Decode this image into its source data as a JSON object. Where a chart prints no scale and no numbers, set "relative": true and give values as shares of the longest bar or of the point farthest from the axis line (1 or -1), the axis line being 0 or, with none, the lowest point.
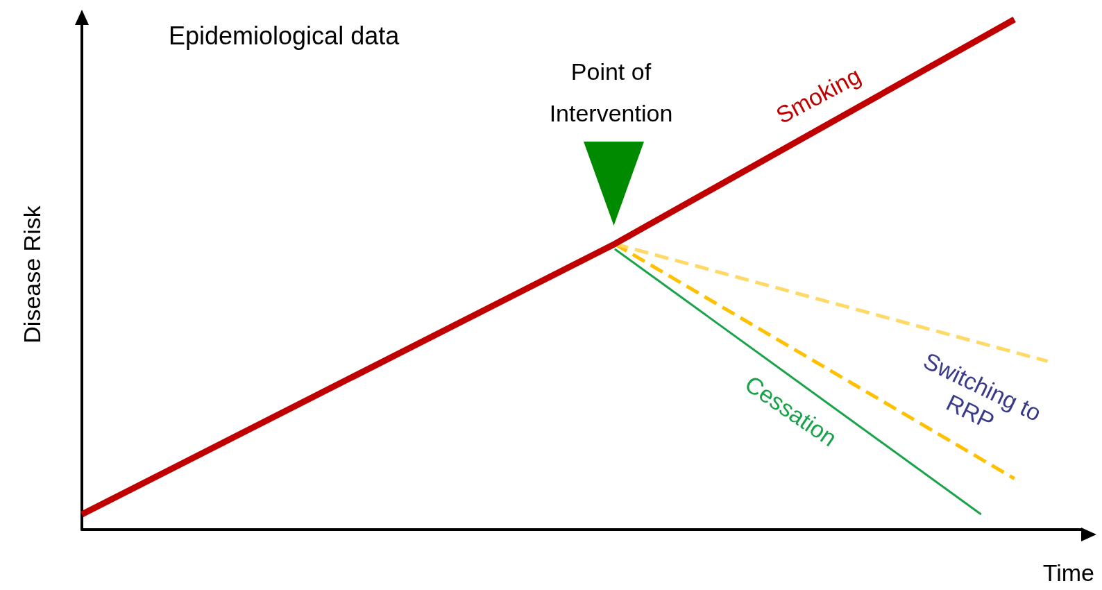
{
  "chart_data": {
    "type": "line",
    "title": "Epidemiological data",
    "xlabel": "Time",
    "ylabel": "Disease Risk",
    "relative": true,
    "legend": false,
    "grid": false,
    "marker": "none",
    "categories": [
      null,
      null,
      null,
      null,
      null,
      null,
      null,
      null,
      null,
      null,
      null,
      null,
      null,
      null,
      null,
      null,
      null,
      null,
      null,
      null,
      null,
      null,
      null,
      null,
      null,
      null,
      null,
      null,
      null,
      null,
      null
    ],
    "annotations": [
      "Point of Intervention"
    ],
    "series": [
      {
        "name": "Smoking",
        "color": "#c00000",
        "line_style": "solid",
        "values": [
          0.03,
          null,
          null,
          null,
          null,
          null,
          null,
          null,
          null,
          null,
          null,
          null,
          null,
          null,
          null,
          null,
          0.56,
          null,
          null,
          null,
          null,
          null,
          null,
          null,
          null,
          null,
          null,
          null,
          1.0,
          null,
          null
        ]
      },
      {
        "color": "#ffd966",
        "line_style": "dashed",
        "values": [
          null,
          null,
          null,
          null,
          null,
          null,
          null,
          null,
          null,
          null,
          null,
          null,
          null,
          null,
          null,
          null,
          0.56,
          null,
          null,
          null,
          null,
          null,
          null,
          null,
          null,
          null,
          null,
          null,
          null,
          0.33,
          null
        ]
      },
      {
        "name": "Switching to RRP",
        "color": "#ffc000",
        "line_style": "dashed",
        "values": [
          null,
          null,
          null,
          null,
          null,
          null,
          null,
          null,
          null,
          null,
          null,
          null,
          null,
          null,
          null,
          null,
          0.56,
          null,
          null,
          null,
          null,
          null,
          null,
          null,
          null,
          null,
          null,
          null,
          0.1,
          null,
          null
        ]
      },
      {
        "name": "Cessation",
        "color": "#1aa34a",
        "line_style": "solid",
        "values": [
          null,
          null,
          null,
          null,
          null,
          null,
          null,
          null,
          null,
          null,
          null,
          null,
          null,
          null,
          null,
          null,
          0.55,
          null,
          null,
          null,
          null,
          null,
          null,
          null,
          null,
          null,
          null,
          0.03,
          null,
          null,
          null
        ]
      }
    ]
  }
}
